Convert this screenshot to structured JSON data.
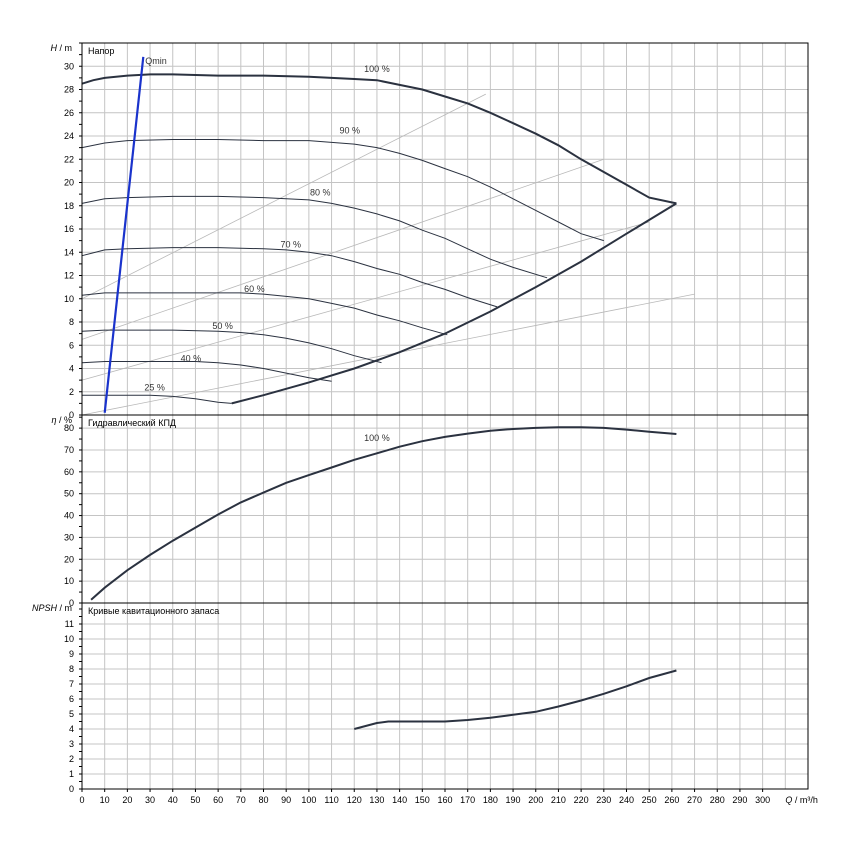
{
  "chart_data": [
    {
      "type": "line",
      "panel": "head",
      "title": "Напор",
      "ylabel_italic": "H",
      "ylabel_unit": "/ m",
      "xlabel_italic": "Q",
      "xlabel_unit": "/ m³/h",
      "xlim": [
        0,
        320
      ],
      "ylim": [
        0,
        32
      ],
      "yticks": [
        0,
        2,
        4,
        6,
        8,
        10,
        12,
        14,
        16,
        18,
        20,
        22,
        24,
        26,
        28,
        30
      ],
      "grid": true,
      "qmin": {
        "label": "Qmin",
        "x": [
          10,
          27
        ],
        "y": [
          0.2,
          30.8
        ]
      },
      "speed_curves": [
        {
          "name": "100 %",
          "label_at": [
            130,
            29.5
          ],
          "x": [
            0,
            5,
            10,
            20,
            30,
            40,
            60,
            80,
            100,
            120,
            130,
            140,
            150,
            160,
            170,
            180,
            190,
            200,
            210,
            220,
            230,
            240,
            250,
            262
          ],
          "y": [
            28.5,
            28.8,
            29.0,
            29.2,
            29.3,
            29.3,
            29.2,
            29.2,
            29.1,
            28.9,
            28.8,
            28.4,
            28.0,
            27.4,
            26.8,
            26.0,
            25.1,
            24.2,
            23.2,
            22.0,
            20.9,
            19.8,
            18.7,
            18.2
          ]
        },
        {
          "name": "90 %",
          "label_at": [
            118,
            24.2
          ],
          "x": [
            0,
            10,
            20,
            40,
            60,
            80,
            100,
            120,
            130,
            140,
            150,
            160,
            170,
            180,
            190,
            200,
            210,
            220,
            230
          ],
          "y": [
            23.0,
            23.4,
            23.6,
            23.7,
            23.7,
            23.6,
            23.6,
            23.3,
            23.0,
            22.5,
            21.9,
            21.2,
            20.5,
            19.6,
            18.6,
            17.6,
            16.6,
            15.6,
            15.0
          ]
        },
        {
          "name": "80 %",
          "label_at": [
            105,
            18.9
          ],
          "x": [
            0,
            10,
            20,
            40,
            60,
            80,
            100,
            110,
            120,
            130,
            140,
            150,
            160,
            170,
            180,
            190,
            205
          ],
          "y": [
            18.2,
            18.6,
            18.7,
            18.8,
            18.8,
            18.7,
            18.5,
            18.2,
            17.8,
            17.3,
            16.7,
            15.9,
            15.2,
            14.3,
            13.4,
            12.7,
            11.8
          ]
        },
        {
          "name": "70 %",
          "label_at": [
            92,
            14.4
          ],
          "x": [
            0,
            10,
            20,
            40,
            60,
            80,
            90,
            100,
            110,
            120,
            130,
            140,
            150,
            160,
            170,
            183
          ],
          "y": [
            13.7,
            14.2,
            14.3,
            14.4,
            14.4,
            14.3,
            14.2,
            14.0,
            13.7,
            13.2,
            12.6,
            12.1,
            11.4,
            10.8,
            10.1,
            9.3
          ]
        },
        {
          "name": "60 %",
          "label_at": [
            76,
            10.6
          ],
          "x": [
            0,
            10,
            20,
            40,
            60,
            70,
            80,
            90,
            100,
            110,
            120,
            130,
            140,
            150,
            161
          ],
          "y": [
            10.3,
            10.5,
            10.5,
            10.5,
            10.5,
            10.5,
            10.4,
            10.2,
            10.0,
            9.6,
            9.2,
            8.6,
            8.1,
            7.5,
            6.9
          ]
        },
        {
          "name": "50 %",
          "label_at": [
            62,
            7.4
          ],
          "x": [
            0,
            10,
            20,
            40,
            60,
            70,
            80,
            90,
            100,
            110,
            120,
            130,
            132
          ],
          "y": [
            7.2,
            7.3,
            7.3,
            7.3,
            7.2,
            7.1,
            6.9,
            6.6,
            6.2,
            5.7,
            5.1,
            4.6,
            4.5
          ]
        },
        {
          "name": "40 %",
          "label_at": [
            48,
            4.6
          ],
          "x": [
            0,
            10,
            20,
            40,
            50,
            60,
            70,
            80,
            90,
            100,
            110
          ],
          "y": [
            4.5,
            4.6,
            4.6,
            4.6,
            4.6,
            4.5,
            4.3,
            4.0,
            3.6,
            3.2,
            2.9
          ]
        },
        {
          "name": "25 %",
          "label_at": [
            32,
            2.1
          ],
          "x": [
            0,
            10,
            20,
            30,
            40,
            50,
            60,
            66
          ],
          "y": [
            1.7,
            1.7,
            1.7,
            1.7,
            1.6,
            1.4,
            1.1,
            1.0
          ]
        }
      ],
      "max_curve": {
        "x": [
          66,
          80,
          100,
          120,
          140,
          160,
          180,
          200,
          220,
          240,
          262
        ],
        "y": [
          1.0,
          1.7,
          2.8,
          4.0,
          5.4,
          7.0,
          8.9,
          11.0,
          13.2,
          15.6,
          18.2
        ]
      },
      "efficiency_lines": [
        {
          "x": [
            0,
            178
          ],
          "y": [
            10.0,
            27.6
          ]
        },
        {
          "x": [
            0,
            230
          ],
          "y": [
            6.5,
            22.0
          ]
        },
        {
          "x": [
            0,
            250
          ],
          "y": [
            3.0,
            16.6
          ]
        },
        {
          "x": [
            0,
            270
          ],
          "y": [
            0.0,
            10.4
          ]
        }
      ]
    },
    {
      "type": "line",
      "panel": "efficiency",
      "title": "Гидравлический КПД",
      "ylabel_italic": "η",
      "ylabel_unit": "/ %",
      "xlim": [
        0,
        320
      ],
      "ylim": [
        0,
        86
      ],
      "yticks": [
        0,
        10,
        20,
        30,
        40,
        50,
        60,
        70,
        80
      ],
      "grid": true,
      "series": [
        {
          "name": "100 %",
          "label_at": [
            130,
            74
          ],
          "x": [
            4,
            10,
            20,
            30,
            40,
            50,
            60,
            70,
            80,
            90,
            100,
            110,
            120,
            130,
            140,
            150,
            160,
            170,
            180,
            190,
            200,
            210,
            220,
            230,
            240,
            250,
            262
          ],
          "y": [
            1.5,
            7,
            15,
            22,
            28.5,
            34.5,
            40.5,
            46,
            50.5,
            55,
            58.5,
            62,
            65.5,
            68.5,
            71.5,
            74,
            76,
            77.5,
            78.8,
            79.6,
            80.1,
            80.4,
            80.4,
            80.1,
            79.3,
            78.3,
            77.3
          ]
        }
      ]
    },
    {
      "type": "line",
      "panel": "npsh",
      "title": "Кривые кавитационного запаса",
      "ylabel_italic": "NPSH",
      "ylabel_unit": "/ m",
      "xlim": [
        0,
        320
      ],
      "ylim": [
        0,
        12.4
      ],
      "yticks": [
        0,
        1,
        2,
        3,
        4,
        5,
        6,
        7,
        8,
        9,
        10,
        11
      ],
      "xticks": [
        0,
        10,
        20,
        30,
        40,
        50,
        60,
        70,
        80,
        90,
        100,
        110,
        120,
        130,
        140,
        150,
        160,
        170,
        180,
        190,
        200,
        210,
        220,
        230,
        240,
        250,
        260,
        270,
        280,
        290,
        300
      ],
      "grid": true,
      "series": [
        {
          "name": "",
          "x": [
            120,
            125,
            130,
            135,
            140,
            150,
            160,
            170,
            180,
            190,
            200,
            210,
            220,
            230,
            240,
            250,
            262
          ],
          "y": [
            4.0,
            4.2,
            4.4,
            4.5,
            4.5,
            4.5,
            4.5,
            4.6,
            4.75,
            4.95,
            5.15,
            5.5,
            5.9,
            6.35,
            6.85,
            7.4,
            7.9
          ]
        }
      ]
    }
  ]
}
